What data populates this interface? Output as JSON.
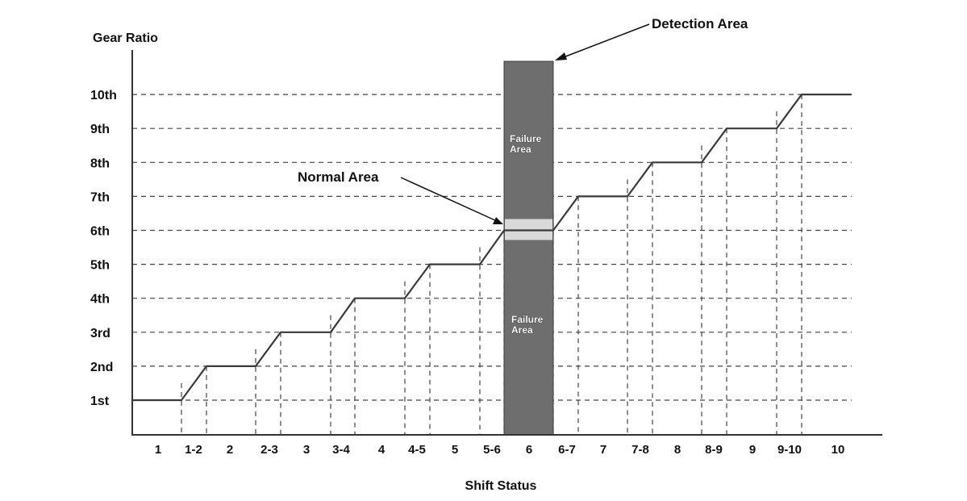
{
  "chart_data": {
    "type": "line",
    "ylabel": "Gear Ratio",
    "xlabel": "Shift Status",
    "y_levels": [
      "1st",
      "2nd",
      "3rd",
      "4th",
      "5th",
      "6th",
      "7th",
      "8th",
      "9th",
      "10th"
    ],
    "categories": [
      "1",
      "1-2",
      "2",
      "2-3",
      "3",
      "3-4",
      "4",
      "4-5",
      "5",
      "5-6",
      "6",
      "6-7",
      "7",
      "7-8",
      "8",
      "8-9",
      "9",
      "9-10",
      "10"
    ],
    "series": [
      {
        "values": [
          1,
          1.5,
          2,
          2.5,
          3,
          3.5,
          4,
          4.5,
          5,
          5.5,
          6,
          6.5,
          7,
          7.5,
          8,
          8.5,
          9,
          9.5,
          10
        ]
      }
    ],
    "grid": "dashed horizontal at each gear level; dashed vertical at shift transitions",
    "annotations": {
      "detection_area": {
        "label": "Detection Area",
        "category": "6"
      },
      "normal_area": {
        "label": "Normal Area",
        "gear": "6th"
      },
      "failure_upper": "Failure Area",
      "failure_lower": "Failure Area"
    },
    "colors": {
      "line": "#3a3a3a",
      "detection_band": "#6e6e6e",
      "normal_band": "#d9d9d9",
      "grid": "#444444"
    }
  }
}
